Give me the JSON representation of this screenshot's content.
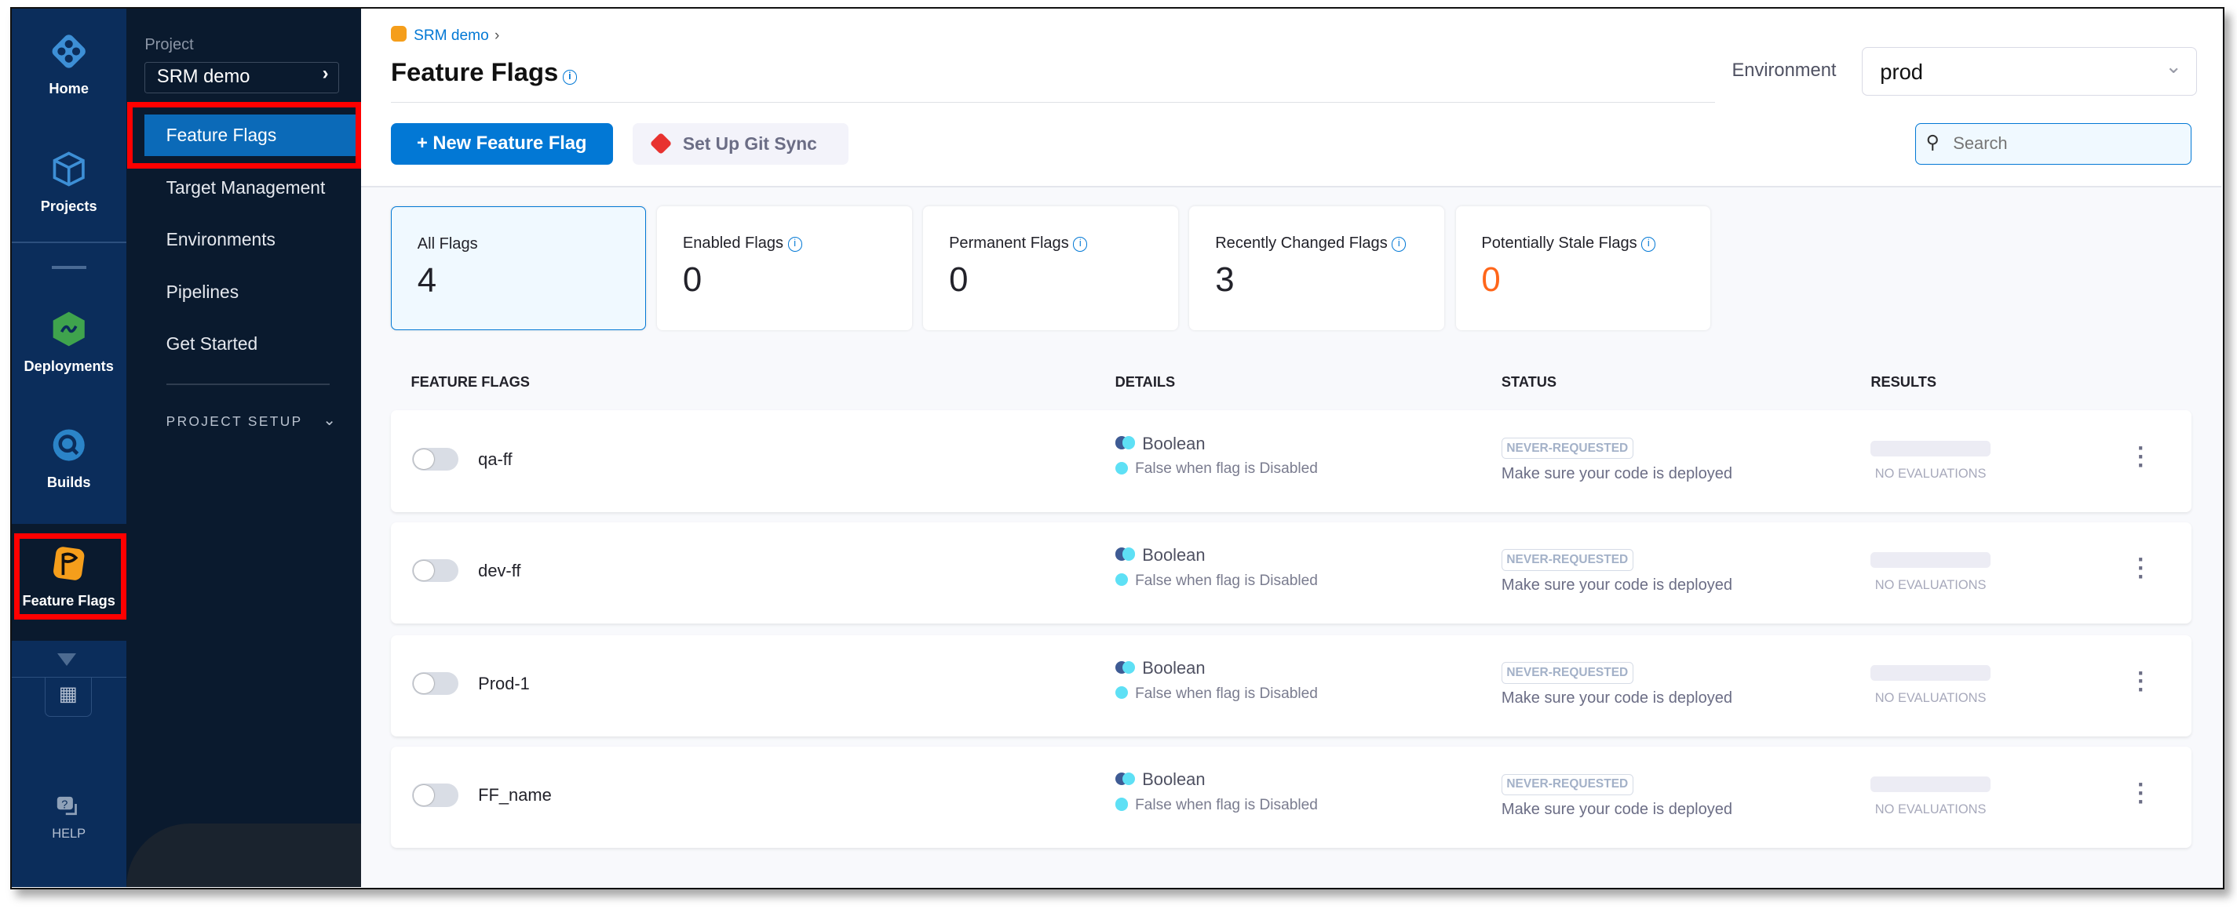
{
  "rail": {
    "items": [
      {
        "label": "Home",
        "icon": "harness-home-icon"
      },
      {
        "label": "Projects",
        "icon": "cube-icon"
      },
      {
        "label": "Deployments",
        "icon": "deployments-icon"
      },
      {
        "label": "Builds",
        "icon": "builds-icon"
      },
      {
        "label": "Feature Flags",
        "icon": "feature-flag-icon",
        "active": true
      }
    ],
    "help": "HELP"
  },
  "sidebar": {
    "project_label": "Project",
    "project_value": "SRM demo",
    "items": [
      {
        "label": "Feature Flags",
        "active": true
      },
      {
        "label": "Target Management"
      },
      {
        "label": "Environments"
      },
      {
        "label": "Pipelines"
      },
      {
        "label": "Get Started"
      }
    ],
    "project_setup": "PROJECT SETUP"
  },
  "header": {
    "breadcrumb": "SRM demo",
    "title": "Feature Flags",
    "environment_label": "Environment",
    "environment_value": "prod"
  },
  "toolbar": {
    "new_flag": "+ New Feature Flag",
    "git_sync": "Set Up Git Sync",
    "search_placeholder": "Search"
  },
  "cards": [
    {
      "label": "All Flags",
      "value": "4"
    },
    {
      "label": "Enabled Flags",
      "value": "0"
    },
    {
      "label": "Permanent Flags",
      "value": "0"
    },
    {
      "label": "Recently Changed Flags",
      "value": "3"
    },
    {
      "label": "Potentially Stale Flags",
      "value": "0"
    }
  ],
  "table": {
    "headers": [
      "FEATURE FLAGS",
      "DETAILS",
      "STATUS",
      "RESULTS"
    ],
    "rows": [
      {
        "name": "qa-ff",
        "enabled": false,
        "type": "Boolean",
        "detail": "False when flag is Disabled",
        "status": "NEVER-REQUESTED",
        "status_note": "Make sure your code is deployed",
        "results": "NO EVALUATIONS"
      },
      {
        "name": "dev-ff",
        "enabled": false,
        "type": "Boolean",
        "detail": "False when flag is Disabled",
        "status": "NEVER-REQUESTED",
        "status_note": "Make sure your code is deployed",
        "results": "NO EVALUATIONS"
      },
      {
        "name": "Prod-1",
        "enabled": false,
        "type": "Boolean",
        "detail": "False when flag is Disabled",
        "status": "NEVER-REQUESTED",
        "status_note": "Make sure your code is deployed",
        "results": "NO EVALUATIONS"
      },
      {
        "name": "FF_name",
        "enabled": false,
        "type": "Boolean",
        "detail": "False when flag is Disabled",
        "status": "NEVER-REQUESTED",
        "status_note": "Make sure your code is deployed",
        "results": "NO EVALUATIONS"
      }
    ]
  },
  "colors": {
    "accent": "#0278d5",
    "stale": "#ff661a",
    "highlight": "#ff0000"
  }
}
